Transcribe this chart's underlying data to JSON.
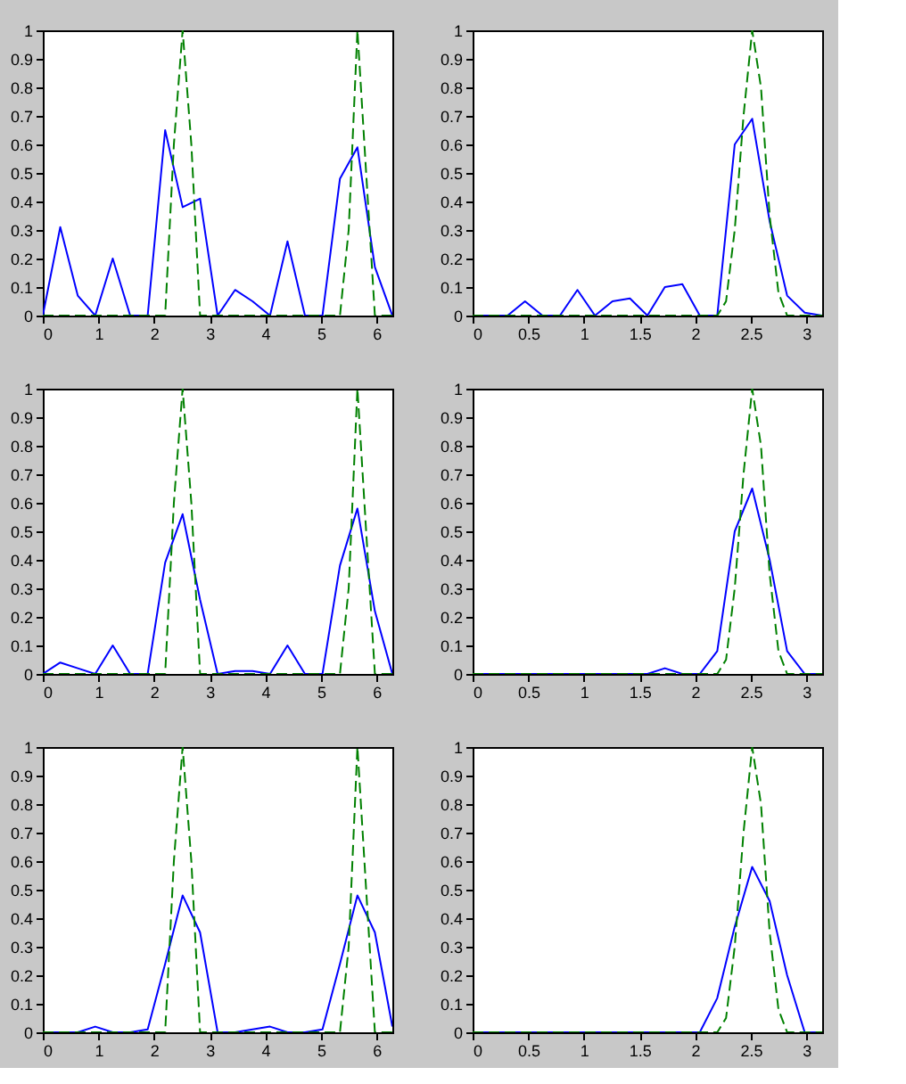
{
  "chart_data": [
    {
      "type": "line",
      "xlim": [
        0,
        6.283
      ],
      "xticks": [
        0,
        1,
        2,
        3,
        4,
        5,
        6
      ],
      "ylim": [
        0,
        1
      ],
      "yticks": [
        0,
        0.1,
        0.2,
        0.3,
        0.4,
        0.5,
        0.6,
        0.7,
        0.8,
        0.9,
        1
      ],
      "grid": false,
      "series": [
        {
          "color": "#0000ff",
          "line_style": "solid",
          "x": [
            0,
            0.314,
            0.628,
            0.942,
            1.257,
            1.571,
            1.885,
            2.199,
            2.513,
            2.827,
            3.142,
            3.456,
            3.77,
            4.084,
            4.398,
            4.712,
            5.027,
            5.341,
            5.655,
            5.969,
            6.283
          ],
          "values": [
            0,
            0.31,
            0.07,
            0,
            0.2,
            0,
            0,
            0.65,
            0.38,
            0.41,
            0,
            0.09,
            0.05,
            0,
            0.26,
            0,
            0,
            0.48,
            0.59,
            0.17,
            0
          ]
        },
        {
          "color": "#008000",
          "line_style": "dashed",
          "x": [
            0,
            2.199,
            2.356,
            2.513,
            2.67,
            2.827,
            5.341,
            5.498,
            5.655,
            5.812,
            5.969,
            6.283
          ],
          "values": [
            0,
            0,
            0.6,
            1,
            0.6,
            0,
            0,
            0.3,
            1,
            0.5,
            0,
            0
          ]
        }
      ]
    },
    {
      "type": "line",
      "xlim": [
        0,
        3.142
      ],
      "xticks": [
        0,
        0.5,
        1,
        1.5,
        2,
        2.5,
        3
      ],
      "ylim": [
        0,
        1
      ],
      "yticks": [
        0,
        0.1,
        0.2,
        0.3,
        0.4,
        0.5,
        0.6,
        0.7,
        0.8,
        0.9,
        1
      ],
      "grid": false,
      "series": [
        {
          "color": "#0000ff",
          "line_style": "solid",
          "x": [
            0,
            0.157,
            0.314,
            0.471,
            0.628,
            0.785,
            0.942,
            1.1,
            1.257,
            1.414,
            1.571,
            1.728,
            1.885,
            2.042,
            2.199,
            2.356,
            2.513,
            2.67,
            2.827,
            2.985,
            3.142
          ],
          "values": [
            0,
            0,
            0,
            0.05,
            0,
            0,
            0.09,
            0,
            0.05,
            0.06,
            0,
            0.1,
            0.11,
            0,
            0,
            0.6,
            0.69,
            0.33,
            0.07,
            0.01,
            0
          ]
        },
        {
          "color": "#008000",
          "line_style": "dashed",
          "x": [
            0,
            2.199,
            2.278,
            2.356,
            2.435,
            2.513,
            2.592,
            2.67,
            2.749,
            2.827,
            3.142
          ],
          "values": [
            0,
            0,
            0.05,
            0.3,
            0.7,
            1,
            0.8,
            0.35,
            0.08,
            0,
            0
          ]
        }
      ]
    },
    {
      "type": "line",
      "xlim": [
        0,
        6.283
      ],
      "xticks": [
        0,
        1,
        2,
        3,
        4,
        5,
        6
      ],
      "ylim": [
        0,
        1
      ],
      "yticks": [
        0,
        0.1,
        0.2,
        0.3,
        0.4,
        0.5,
        0.6,
        0.7,
        0.8,
        0.9,
        1
      ],
      "grid": false,
      "series": [
        {
          "color": "#0000ff",
          "line_style": "solid",
          "x": [
            0,
            0.314,
            0.628,
            0.942,
            1.257,
            1.571,
            1.885,
            2.199,
            2.513,
            2.827,
            3.142,
            3.456,
            3.77,
            4.084,
            4.398,
            4.712,
            5.027,
            5.341,
            5.655,
            5.969,
            6.283
          ],
          "values": [
            0,
            0.04,
            0.02,
            0,
            0.1,
            0,
            0,
            0.39,
            0.56,
            0.26,
            0,
            0.01,
            0.01,
            0,
            0.1,
            0,
            0,
            0.38,
            0.58,
            0.22,
            0
          ]
        },
        {
          "color": "#008000",
          "line_style": "dashed",
          "x": [
            0,
            2.199,
            2.356,
            2.513,
            2.67,
            2.827,
            5.341,
            5.498,
            5.655,
            5.812,
            5.969,
            6.283
          ],
          "values": [
            0,
            0,
            0.6,
            1,
            0.6,
            0,
            0,
            0.3,
            1,
            0.5,
            0,
            0
          ]
        }
      ]
    },
    {
      "type": "line",
      "xlim": [
        0,
        3.142
      ],
      "xticks": [
        0,
        0.5,
        1,
        1.5,
        2,
        2.5,
        3
      ],
      "ylim": [
        0,
        1
      ],
      "yticks": [
        0,
        0.1,
        0.2,
        0.3,
        0.4,
        0.5,
        0.6,
        0.7,
        0.8,
        0.9,
        1
      ],
      "grid": false,
      "series": [
        {
          "color": "#0000ff",
          "line_style": "solid",
          "x": [
            0,
            0.157,
            0.314,
            0.471,
            0.628,
            0.785,
            0.942,
            1.1,
            1.257,
            1.414,
            1.571,
            1.728,
            1.885,
            2.042,
            2.199,
            2.356,
            2.513,
            2.67,
            2.827,
            2.985,
            3.142
          ],
          "values": [
            0,
            0,
            0,
            0,
            0,
            0,
            0,
            0,
            0,
            0,
            0,
            0.02,
            0,
            0,
            0.08,
            0.5,
            0.65,
            0.4,
            0.08,
            0,
            0
          ]
        },
        {
          "color": "#008000",
          "line_style": "dashed",
          "x": [
            0,
            2.199,
            2.278,
            2.356,
            2.435,
            2.513,
            2.592,
            2.67,
            2.749,
            2.827,
            3.142
          ],
          "values": [
            0,
            0,
            0.05,
            0.3,
            0.7,
            1,
            0.8,
            0.35,
            0.08,
            0,
            0
          ]
        }
      ]
    },
    {
      "type": "line",
      "xlim": [
        0,
        6.283
      ],
      "xticks": [
        0,
        1,
        2,
        3,
        4,
        5,
        6
      ],
      "ylim": [
        0,
        1
      ],
      "yticks": [
        0,
        0.1,
        0.2,
        0.3,
        0.4,
        0.5,
        0.6,
        0.7,
        0.8,
        0.9,
        1
      ],
      "grid": false,
      "series": [
        {
          "color": "#0000ff",
          "line_style": "solid",
          "x": [
            0,
            0.314,
            0.628,
            0.942,
            1.257,
            1.571,
            1.885,
            2.199,
            2.513,
            2.827,
            3.142,
            3.456,
            3.77,
            4.084,
            4.398,
            4.712,
            5.027,
            5.341,
            5.655,
            5.969,
            6.283
          ],
          "values": [
            0,
            0,
            0,
            0.02,
            0,
            0,
            0.01,
            0.24,
            0.48,
            0.35,
            0,
            0,
            0.01,
            0.02,
            0,
            0,
            0.01,
            0.24,
            0.48,
            0.35,
            0.02
          ]
        },
        {
          "color": "#008000",
          "line_style": "dashed",
          "x": [
            0,
            2.199,
            2.356,
            2.513,
            2.67,
            2.827,
            5.341,
            5.498,
            5.655,
            5.812,
            5.969,
            6.283
          ],
          "values": [
            0,
            0,
            0.6,
            1,
            0.6,
            0,
            0,
            0.3,
            1,
            0.5,
            0,
            0
          ]
        }
      ]
    },
    {
      "type": "line",
      "xlim": [
        0,
        3.142
      ],
      "xticks": [
        0,
        0.5,
        1,
        1.5,
        2,
        2.5,
        3
      ],
      "ylim": [
        0,
        1
      ],
      "yticks": [
        0,
        0.1,
        0.2,
        0.3,
        0.4,
        0.5,
        0.6,
        0.7,
        0.8,
        0.9,
        1
      ],
      "grid": false,
      "series": [
        {
          "color": "#0000ff",
          "line_style": "solid",
          "x": [
            0,
            0.157,
            0.314,
            0.471,
            0.628,
            0.785,
            0.942,
            1.1,
            1.257,
            1.414,
            1.571,
            1.728,
            1.885,
            2.042,
            2.199,
            2.356,
            2.513,
            2.67,
            2.827,
            2.985,
            3.142
          ],
          "values": [
            0,
            0,
            0,
            0,
            0,
            0,
            0,
            0,
            0,
            0,
            0,
            0,
            0,
            0,
            0.12,
            0.37,
            0.58,
            0.46,
            0.2,
            0,
            0
          ]
        },
        {
          "color": "#008000",
          "line_style": "dashed",
          "x": [
            0,
            2.199,
            2.278,
            2.356,
            2.435,
            2.513,
            2.592,
            2.67,
            2.749,
            2.827,
            3.142
          ],
          "values": [
            0,
            0,
            0.05,
            0.3,
            0.7,
            1,
            0.8,
            0.35,
            0.08,
            0,
            0
          ]
        }
      ]
    }
  ]
}
